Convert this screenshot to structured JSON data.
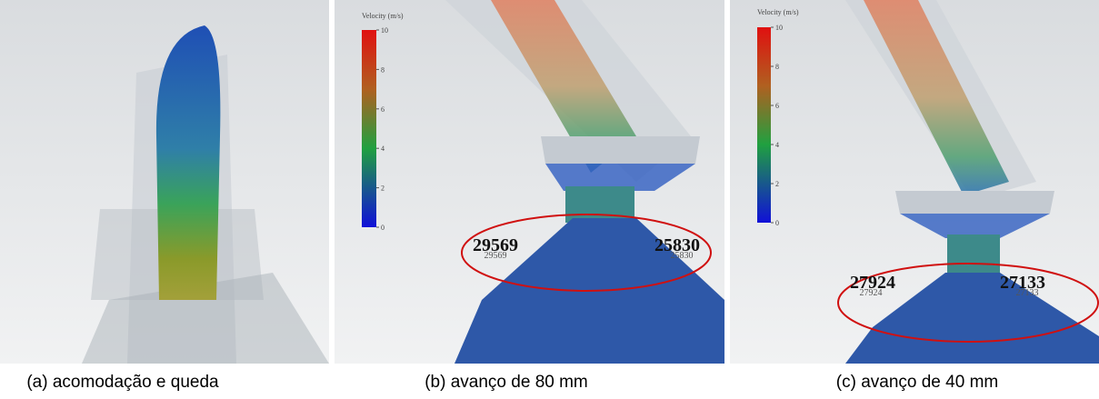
{
  "panels": [
    {
      "caption": "(a) acomodação e queda"
    },
    {
      "caption": "(b) avanço de 80 mm",
      "colorbar": {
        "title": "Velocity (m/s)",
        "ticks": [
          10,
          8,
          6,
          4,
          2,
          0
        ]
      },
      "labels": [
        "29569",
        "25830"
      ]
    },
    {
      "caption": "(c) avanço de 40 mm",
      "colorbar": {
        "title": "Velocity (m/s)",
        "ticks": [
          10,
          8,
          6,
          4,
          2,
          0
        ]
      },
      "labels": [
        "27924",
        "27133"
      ]
    }
  ]
}
